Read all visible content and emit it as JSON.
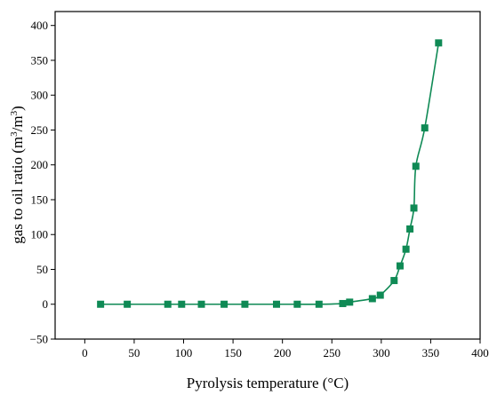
{
  "chart_data": {
    "type": "scatter",
    "title": "",
    "xlabel": "Pyrolysis temperature (°C)",
    "ylabel_parts": [
      "gas to oil ratio (m",
      "3",
      "/m",
      "3",
      ")"
    ],
    "xlim": [
      -30,
      400
    ],
    "ylim": [
      -50,
      420
    ],
    "x_ticks": [
      0,
      50,
      100,
      150,
      200,
      250,
      300,
      350,
      400
    ],
    "y_ticks": [
      -50,
      0,
      50,
      100,
      150,
      200,
      250,
      300,
      350,
      400
    ],
    "x_tick_labels": [
      "0",
      "50",
      "100",
      "150",
      "200",
      "250",
      "300",
      "350",
      "400"
    ],
    "y_tick_labels": [
      "−50",
      "0",
      "50",
      "100",
      "150",
      "200",
      "250",
      "300",
      "350",
      "400"
    ],
    "grid": false,
    "series": [
      {
        "color": "#0f8a55",
        "marker": "square",
        "line": "smooth",
        "x": [
          16,
          43,
          84,
          98,
          118,
          141,
          162,
          194,
          215,
          237,
          261,
          268,
          291,
          299,
          313,
          319,
          325,
          329,
          333,
          335,
          344,
          358
        ],
        "y": [
          0,
          0,
          0,
          0,
          0,
          0,
          0,
          0,
          0,
          0,
          1,
          3,
          8,
          13,
          34,
          55,
          79,
          108,
          138,
          198,
          253,
          375
        ]
      }
    ]
  }
}
